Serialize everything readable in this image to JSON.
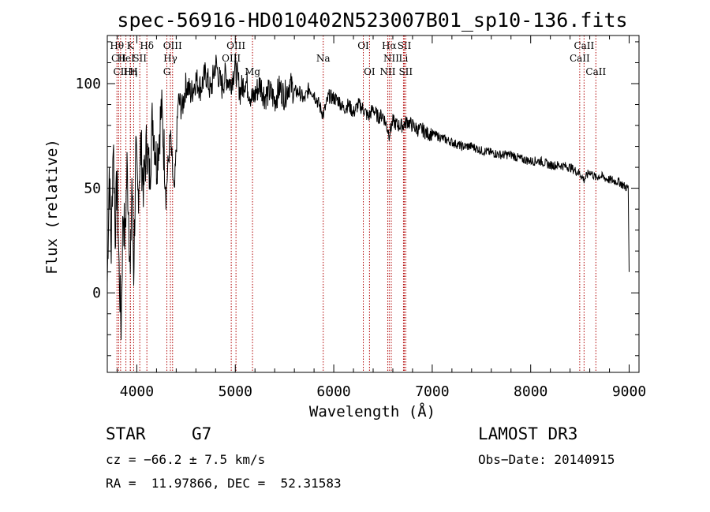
{
  "chart_data": {
    "type": "line",
    "title": "spec-56916-HD010402N523007B01_sp10-136.fits",
    "xlabel": "Wavelength (Å)",
    "ylabel": "Flux (relative)",
    "xlim": [
      3700,
      9100
    ],
    "ylim": [
      -38,
      123
    ],
    "xticks": [
      4000,
      5000,
      6000,
      7000,
      8000,
      9000
    ],
    "yticks": [
      0,
      50,
      100
    ],
    "xtick_labels": [
      "4000",
      "5000",
      "6000",
      "7000",
      "8000",
      "9000"
    ],
    "ytick_labels": [
      "0",
      "50",
      "100"
    ],
    "series": [
      {
        "name": "spectrum",
        "x": [
          3700,
          3720,
          3740,
          3760,
          3780,
          3800,
          3820,
          3840,
          3860,
          3880,
          3900,
          3920,
          3934,
          3950,
          3968,
          3990,
          4010,
          4040,
          4070,
          4100,
          4130,
          4160,
          4200,
          4250,
          4300,
          4340,
          4380,
          4420,
          4460,
          4500,
          4550,
          4600,
          4650,
          4700,
          4750,
          4800,
          4861,
          4900,
          4950,
          5000,
          5050,
          5100,
          5175,
          5250,
          5300,
          5350,
          5400,
          5450,
          5500,
          5550,
          5600,
          5650,
          5700,
          5750,
          5800,
          5850,
          5893,
          5950,
          6000,
          6050,
          6100,
          6150,
          6200,
          6250,
          6300,
          6350,
          6400,
          6450,
          6500,
          6563,
          6600,
          6650,
          6700,
          6750,
          6800,
          6850,
          6900,
          6950,
          7000,
          7100,
          7200,
          7300,
          7400,
          7500,
          7600,
          7700,
          7800,
          7900,
          8000,
          8100,
          8200,
          8300,
          8400,
          8500,
          8542,
          8600,
          8662,
          8700,
          8800,
          8900,
          8950,
          8990,
          9000
        ],
        "y": [
          5,
          60,
          20,
          75,
          30,
          55,
          10,
          -15,
          40,
          25,
          60,
          35,
          5,
          55,
          10,
          65,
          45,
          70,
          50,
          72,
          55,
          85,
          62,
          88,
          50,
          75,
          45,
          92,
          88,
          100,
          95,
          102,
          98,
          105,
          96,
          110,
          98,
          104,
          100,
          108,
          96,
          102,
          92,
          100,
          94,
          96,
          92,
          98,
          94,
          100,
          96,
          96,
          92,
          98,
          95,
          90,
          85,
          94,
          93,
          92,
          88,
          90,
          86,
          90,
          88,
          84,
          88,
          84,
          85,
          76,
          82,
          80,
          80,
          82,
          80,
          78,
          78,
          76,
          76,
          74,
          72,
          70,
          70,
          68,
          67,
          66,
          66,
          64,
          63,
          63,
          61,
          61,
          60,
          57,
          54,
          58,
          55,
          56,
          54,
          53,
          51,
          50,
          10
        ]
      }
    ],
    "line_markers": [
      {
        "label": "Hθ",
        "wavelength": 3798,
        "row": 1
      },
      {
        "label": "CII",
        "wavelength": 3815,
        "row": 2
      },
      {
        "label": "CII",
        "wavelength": 3835,
        "row": 3
      },
      {
        "label": "HeI",
        "wavelength": 3889,
        "row": 2
      },
      {
        "label": "K",
        "wavelength": 3934,
        "row": 1
      },
      {
        "label": "Hη",
        "wavelength": 3935,
        "row": 3
      },
      {
        "label": "H",
        "wavelength": 3968,
        "row": 3
      },
      {
        "label": "SII",
        "wavelength": 4030,
        "row": 2
      },
      {
        "label": "Hδ",
        "wavelength": 4102,
        "row": 1
      },
      {
        "label": "OIII",
        "wavelength": 4363,
        "row": 1
      },
      {
        "label": "Hγ",
        "wavelength": 4341,
        "row": 2
      },
      {
        "label": "G",
        "wavelength": 4305,
        "row": 3
      },
      {
        "label": "OIII",
        "wavelength": 5007,
        "row": 1
      },
      {
        "label": "OIII",
        "wavelength": 4959,
        "row": 2
      },
      {
        "label": "Mg",
        "wavelength": 5175,
        "row": 3
      },
      {
        "label": "Na",
        "wavelength": 5893,
        "row": 2
      },
      {
        "label": "OI",
        "wavelength": 6300,
        "row": 1
      },
      {
        "label": "OI",
        "wavelength": 6363,
        "row": 3
      },
      {
        "label": "Hα",
        "wavelength": 6563,
        "row": 1
      },
      {
        "label": "SII",
        "wavelength": 6717,
        "row": 1
      },
      {
        "label": "NII",
        "wavelength": 6584,
        "row": 2
      },
      {
        "label": "Li",
        "wavelength": 6708,
        "row": 2
      },
      {
        "label": "NII",
        "wavelength": 6548,
        "row": 3
      },
      {
        "label": "SII",
        "wavelength": 6731,
        "row": 3
      },
      {
        "label": "CaII",
        "wavelength": 8542,
        "row": 1
      },
      {
        "label": "CaII",
        "wavelength": 8498,
        "row": 2
      },
      {
        "label": "CaII",
        "wavelength": 8662,
        "row": 3
      }
    ]
  },
  "info": {
    "object_class": "STAR",
    "subclass": "G7",
    "survey": "LAMOST DR3",
    "cz": "cz = −66.2 ± 7.5 km/s",
    "obs_date": "Obs−Date: 20140915",
    "coords": "RA =  11.97866, DEC =  52.31583"
  }
}
